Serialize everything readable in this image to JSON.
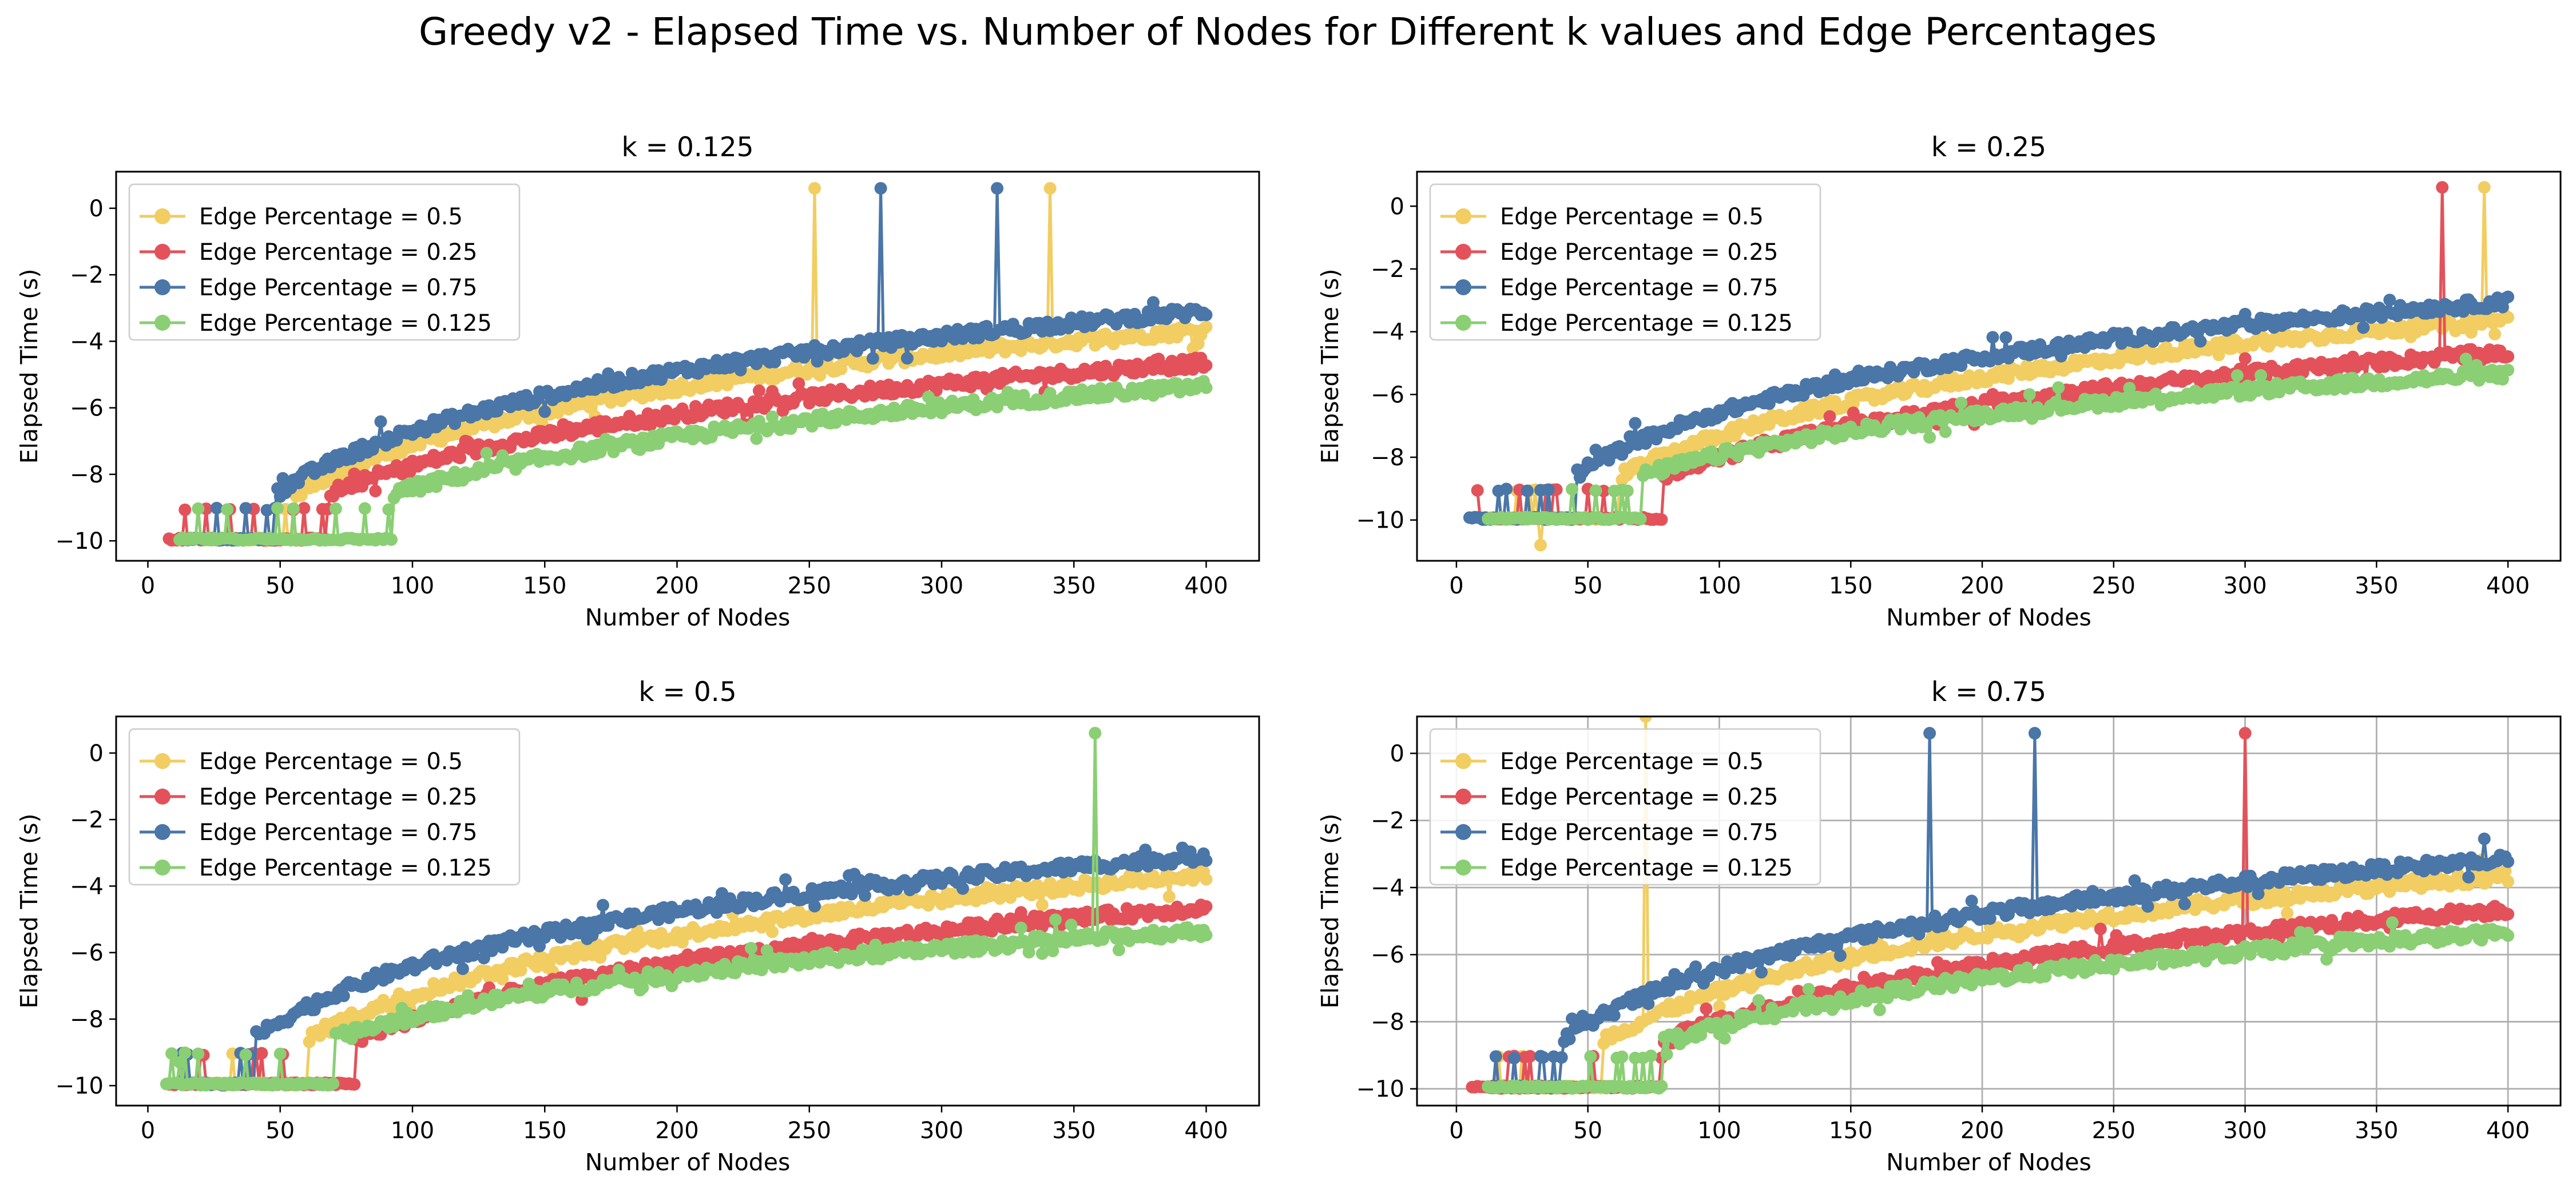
{
  "figure": {
    "suptitle": "Greedy v2 - Elapsed Time vs. Number of Nodes for Different k values and Edge Percentages"
  },
  "legend_labels": [
    "Edge Percentage = 0.5",
    "Edge Percentage = 0.25",
    "Edge Percentage = 0.75",
    "Edge Percentage = 0.125"
  ],
  "colors": {
    "ep_0.5": "#f1cd62",
    "ep_0.25": "#e3525a",
    "ep_0.75": "#4a76a8",
    "ep_0.125": "#8acf74"
  },
  "chart_data": [
    {
      "type": "line",
      "title": "k = 0.125",
      "xlabel": "Number of Nodes",
      "ylabel": "Elapsed Time (s)",
      "xlim": [
        -12,
        420
      ],
      "ylim": [
        -10.6,
        1.1
      ],
      "xticks": [
        0,
        50,
        100,
        150,
        200,
        250,
        300,
        350,
        400
      ],
      "yticks": [
        -10,
        -8,
        -6,
        -4,
        -2,
        0
      ],
      "grid": false,
      "legend_position": "upper-left",
      "series": [
        {
          "name": "Edge Percentage = 0.5",
          "x_range": [
            15,
            400
          ],
          "start_y": -9.95,
          "end_y": -3.65,
          "flat_until": 55,
          "spikes": [
            [
              252,
              0.6
            ],
            [
              341,
              0.6
            ]
          ]
        },
        {
          "name": "Edge Percentage = 0.25",
          "x_range": [
            8,
            400
          ],
          "start_y": -9.95,
          "end_y": -4.65,
          "flat_until": 68,
          "spikes": []
        },
        {
          "name": "Edge Percentage = 0.75",
          "x_range": [
            15,
            400
          ],
          "start_y": -9.95,
          "end_y": -3.1,
          "flat_until": 48,
          "spikes": [
            [
              277,
              0.6
            ],
            [
              321,
              0.6
            ]
          ]
        },
        {
          "name": "Edge Percentage = 0.125",
          "x_range": [
            12,
            400
          ],
          "start_y": -9.95,
          "end_y": -5.35,
          "flat_until": 92,
          "spikes": []
        }
      ]
    },
    {
      "type": "line",
      "title": "k = 0.25",
      "xlabel": "Number of Nodes",
      "ylabel": "Elapsed Time (s)",
      "xlim": [
        -15,
        420
      ],
      "ylim": [
        -11.3,
        1.1
      ],
      "xticks": [
        0,
        50,
        100,
        150,
        200,
        250,
        300,
        350,
        400
      ],
      "yticks": [
        -10,
        -8,
        -6,
        -4,
        -2,
        0
      ],
      "grid": false,
      "legend_position": "upper-left",
      "series": [
        {
          "name": "Edge Percentage = 0.5",
          "x_range": [
            15,
            400
          ],
          "start_y": -9.95,
          "end_y": -3.6,
          "flat_until": 62,
          "spikes": [
            [
              32,
              -10.8
            ],
            [
              391,
              0.6
            ]
          ]
        },
        {
          "name": "Edge Percentage = 0.25",
          "x_range": [
            8,
            400
          ],
          "start_y": -9.95,
          "end_y": -4.65,
          "flat_until": 78,
          "spikes": [
            [
              375,
              0.6
            ]
          ]
        },
        {
          "name": "Edge Percentage = 0.75",
          "x_range": [
            5,
            400
          ],
          "start_y": -9.95,
          "end_y": -3.05,
          "flat_until": 45,
          "spikes": []
        },
        {
          "name": "Edge Percentage = 0.125",
          "x_range": [
            12,
            400
          ],
          "start_y": -9.95,
          "end_y": -5.35,
          "flat_until": 70,
          "spikes": []
        }
      ]
    },
    {
      "type": "line",
      "title": "k = 0.5",
      "xlabel": "Number of Nodes",
      "ylabel": "Elapsed Time (s)",
      "xlim": [
        -12,
        420
      ],
      "ylim": [
        -10.6,
        1.1
      ],
      "xticks": [
        0,
        50,
        100,
        150,
        200,
        250,
        300,
        350,
        400
      ],
      "yticks": [
        -10,
        -8,
        -6,
        -4,
        -2,
        0
      ],
      "grid": false,
      "legend_position": "upper-left",
      "series": [
        {
          "name": "Edge Percentage = 0.5",
          "x_range": [
            15,
            400
          ],
          "start_y": -9.95,
          "end_y": -3.65,
          "flat_until": 60,
          "spikes": []
        },
        {
          "name": "Edge Percentage = 0.25",
          "x_range": [
            8,
            400
          ],
          "start_y": -9.95,
          "end_y": -4.65,
          "flat_until": 78,
          "spikes": []
        },
        {
          "name": "Edge Percentage = 0.75",
          "x_range": [
            12,
            400
          ],
          "start_y": -9.95,
          "end_y": -3.1,
          "flat_until": 40,
          "spikes": []
        },
        {
          "name": "Edge Percentage = 0.125",
          "x_range": [
            7,
            400
          ],
          "start_y": -9.95,
          "end_y": -5.35,
          "flat_until": 70,
          "spikes": [
            [
              12,
              -9.3
            ],
            [
              358,
              0.6
            ]
          ]
        }
      ]
    },
    {
      "type": "line",
      "title": "k = 0.75",
      "xlabel": "Number of Nodes",
      "ylabel": "Elapsed Time (s)",
      "xlim": [
        -15,
        420
      ],
      "ylim": [
        -10.5,
        1.1
      ],
      "xticks": [
        0,
        50,
        100,
        150,
        200,
        250,
        300,
        350,
        400
      ],
      "yticks": [
        -10,
        -8,
        -6,
        -4,
        -2,
        0
      ],
      "grid": true,
      "legend_position": "upper-left",
      "series": [
        {
          "name": "Edge Percentage = 0.5",
          "x_range": [
            15,
            400
          ],
          "start_y": -9.95,
          "end_y": -3.65,
          "flat_until": 55,
          "spikes": [
            [
              72,
              1.1
            ]
          ]
        },
        {
          "name": "Edge Percentage = 0.25",
          "x_range": [
            6,
            400
          ],
          "start_y": -9.95,
          "end_y": -4.65,
          "flat_until": 78,
          "spikes": [
            [
              300,
              0.6
            ]
          ]
        },
        {
          "name": "Edge Percentage = 0.75",
          "x_range": [
            12,
            400
          ],
          "start_y": -9.95,
          "end_y": -3.15,
          "flat_until": 40,
          "spikes": [
            [
              180,
              0.6
            ],
            [
              220,
              0.6
            ]
          ]
        },
        {
          "name": "Edge Percentage = 0.125",
          "x_range": [
            12,
            400
          ],
          "start_y": -9.95,
          "end_y": -5.35,
          "flat_until": 78,
          "spikes": []
        }
      ]
    }
  ]
}
